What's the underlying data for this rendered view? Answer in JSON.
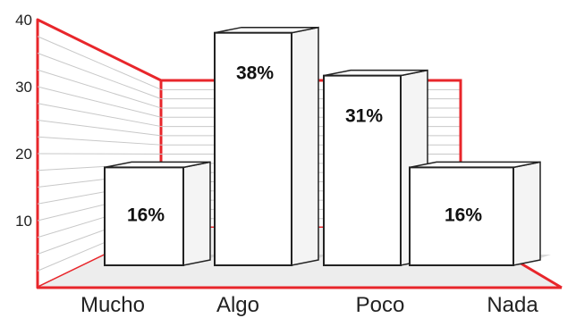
{
  "chart_data": {
    "type": "bar",
    "categories": [
      "Mucho",
      "Algo",
      "Poco",
      "Nada"
    ],
    "values": [
      16,
      38,
      31,
      16
    ],
    "data_labels": [
      "16%",
      "38%",
      "31%",
      "16%"
    ],
    "ylim": [
      0,
      40
    ],
    "yticks": [
      10,
      20,
      30,
      40
    ],
    "grid": true,
    "style": "3d"
  },
  "colors": {
    "frame": "#e8262b",
    "bar_fill": "#ffffff",
    "bar_stroke": "#222222",
    "shadow": "#bdbdbd",
    "grid": "#c8c8c8"
  }
}
